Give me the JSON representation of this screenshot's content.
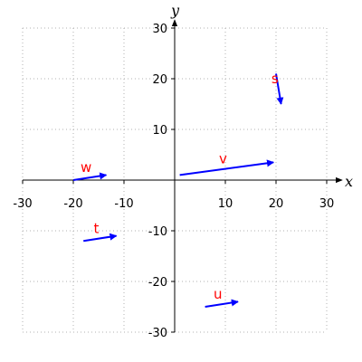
{
  "chart_data": {
    "type": "vector-field",
    "title": "",
    "xlabel": "x",
    "ylabel": "y",
    "xlim": [
      -30,
      30
    ],
    "ylim": [
      -30,
      30
    ],
    "xticks": [
      -30,
      -20,
      -10,
      10,
      20,
      30
    ],
    "yticks": [
      -30,
      -20,
      -10,
      10,
      20,
      30
    ],
    "grid": true,
    "vector_color": "#0000ff",
    "label_color": "#ff0000",
    "vectors": [
      {
        "name": "w",
        "start": [
          -20,
          0
        ],
        "end": [
          -13.5,
          1
        ]
      },
      {
        "name": "v",
        "start": [
          1,
          1
        ],
        "end": [
          19.5,
          3.5
        ]
      },
      {
        "name": "s",
        "start": [
          20,
          21
        ],
        "end": [
          21,
          15
        ]
      },
      {
        "name": "t",
        "start": [
          -18,
          -12
        ],
        "end": [
          -11.5,
          -11
        ]
      },
      {
        "name": "u",
        "start": [
          6,
          -25
        ],
        "end": [
          12.5,
          -24
        ]
      }
    ]
  }
}
